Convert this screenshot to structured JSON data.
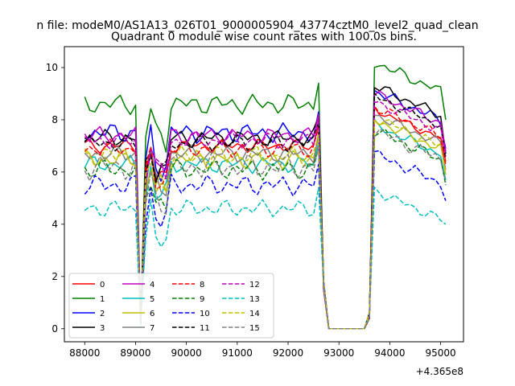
{
  "chart_data": {
    "type": "line",
    "suptitle": "n file: modeM0/AS1A13_026T01_9000005904_43774cztM0_level2_quad_clean",
    "title": "Quadrant 0 module wise count rates with 100.0s bins.",
    "xlabel": "",
    "ylabel": "",
    "offset_text": "+4.365e8",
    "xlim": [
      87600,
      95450
    ],
    "ylim": [
      -0.5,
      10.8
    ],
    "xticks": [
      88000,
      89000,
      90000,
      91000,
      92000,
      93000,
      94000,
      95000
    ],
    "xtick_labels": [
      "88000",
      "89000",
      "90000",
      "91000",
      "92000",
      "93000",
      "94000",
      "95000"
    ],
    "yticks": [
      0,
      2,
      4,
      6,
      8,
      10
    ],
    "ytick_labels": [
      "0",
      "2",
      "4",
      "6",
      "8",
      "10"
    ],
    "legend_position": "lower-left",
    "legend_columns": 4,
    "grid": false,
    "x_start": 88000,
    "x_step": 100,
    "segments": [
      [
        0,
        11
      ],
      [
        12,
        46
      ],
      [
        57,
        71
      ]
    ],
    "dip_index": 11,
    "gap_range": [
      47,
      56
    ],
    "series": [
      {
        "name": "0",
        "color": "#ff0000",
        "dash": "solid",
        "base": 7.0,
        "amp": 0.25,
        "post": 7.8
      },
      {
        "name": "1",
        "color": "#008000",
        "dash": "solid",
        "base": 8.6,
        "amp": 0.35,
        "post": 9.6
      },
      {
        "name": "2",
        "color": "#0000ff",
        "dash": "solid",
        "base": 7.5,
        "amp": 0.35,
        "post": 8.5
      },
      {
        "name": "3",
        "color": "#000000",
        "dash": "solid",
        "base": 7.3,
        "amp": 0.3,
        "post": 8.7
      },
      {
        "name": "4",
        "color": "#bf00bf",
        "dash": "solid",
        "base": 7.4,
        "amp": 0.3,
        "post": 8.4
      },
      {
        "name": "5",
        "color": "#00bfbf",
        "dash": "solid",
        "base": 6.3,
        "amp": 0.3,
        "post": 7.2
      },
      {
        "name": "6",
        "color": "#bfbf00",
        "dash": "solid",
        "base": 6.5,
        "amp": 0.35,
        "post": 7.4
      },
      {
        "name": "7",
        "color": "#808080",
        "dash": "solid",
        "base": 6.7,
        "amp": 0.3,
        "post": 7.6
      },
      {
        "name": "8",
        "color": "#ff0000",
        "dash": "dashed",
        "base": 6.9,
        "amp": 0.3,
        "post": 7.9
      },
      {
        "name": "9",
        "color": "#008000",
        "dash": "dashed",
        "base": 6.1,
        "amp": 0.35,
        "post": 7.0
      },
      {
        "name": "10",
        "color": "#0000ff",
        "dash": "dashed",
        "base": 5.5,
        "amp": 0.35,
        "post": 6.1
      },
      {
        "name": "11",
        "color": "#000000",
        "dash": "dashed",
        "base": 7.1,
        "amp": 0.3,
        "post": 8.3
      },
      {
        "name": "12",
        "color": "#bf00bf",
        "dash": "dashed",
        "base": 7.2,
        "amp": 0.3,
        "post": 8.1
      },
      {
        "name": "13",
        "color": "#00bfbf",
        "dash": "dashed",
        "base": 4.6,
        "amp": 0.3,
        "post": 4.7
      },
      {
        "name": "14",
        "color": "#bfbf00",
        "dash": "dashed",
        "base": 6.6,
        "amp": 0.35,
        "post": 7.5
      },
      {
        "name": "15",
        "color": "#808080",
        "dash": "dashed",
        "base": 6.2,
        "amp": 0.45,
        "post": 7.0
      }
    ]
  }
}
